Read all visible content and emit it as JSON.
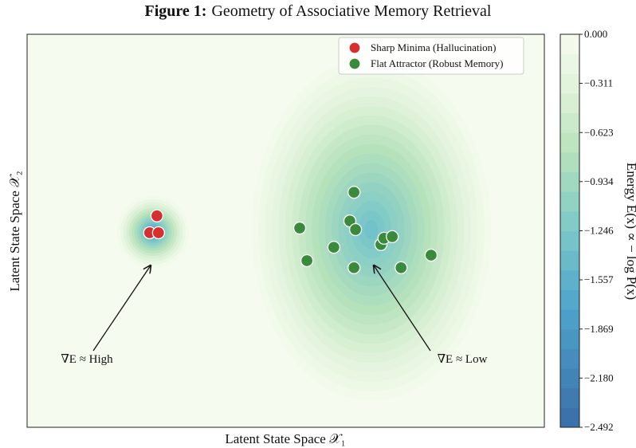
{
  "chart_data": {
    "type": "scatter",
    "title": {
      "prefix": "Figure 1:",
      "text": "Geometry of Associative Memory Retrieval"
    },
    "x_label": "Latent State Space 𝒳₁",
    "y_label": "Latent State Space 𝒳₂",
    "xlim": [
      0,
      1
    ],
    "ylim": [
      0,
      1
    ],
    "legend": "upper right",
    "series": [
      {
        "name": "Sharp Minima (Hallucination)",
        "color": "#d62f2f",
        "x": [
          0.251,
          0.237,
          0.254
        ],
        "y": [
          0.538,
          0.495,
          0.495
        ]
      },
      {
        "name": "Flat Attractor (Robust Memory)",
        "color": "#3a8a3c",
        "x": [
          0.632,
          0.527,
          0.624,
          0.635,
          0.541,
          0.593,
          0.632,
          0.684,
          0.69,
          0.706,
          0.723,
          0.781
        ],
        "y": [
          0.598,
          0.507,
          0.525,
          0.503,
          0.424,
          0.458,
          0.406,
          0.465,
          0.481,
          0.485,
          0.406,
          0.438
        ]
      }
    ],
    "annotations": [
      {
        "text": "∇E ≈ High"
      },
      {
        "text": "∇E ≈ Low"
      }
    ],
    "colorbar": {
      "label": "Energy E(x) ∝ − log P(x)",
      "lim": [
        -2.492,
        0
      ],
      "ticks": [
        {
          "value": 0,
          "label": "0.000"
        },
        {
          "value": -0.311,
          "label": "−0.311"
        },
        {
          "value": -0.623,
          "label": "−0.623"
        },
        {
          "value": -0.934,
          "label": "−0.934"
        },
        {
          "value": -1.246,
          "label": "−1.246"
        },
        {
          "value": -1.557,
          "label": "−1.557"
        },
        {
          "value": -1.869,
          "label": "−1.869"
        },
        {
          "value": -2.18,
          "label": "−2.180"
        },
        {
          "value": -2.492,
          "label": "−2.492"
        }
      ]
    }
  }
}
